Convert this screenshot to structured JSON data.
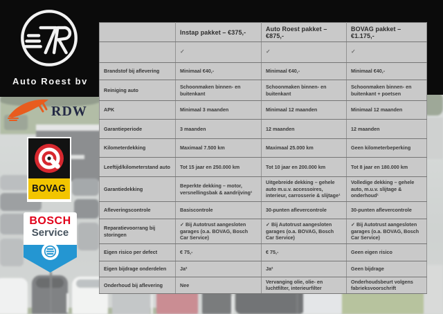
{
  "branding": {
    "company": "Auto Roest bv",
    "monogram": "7R"
  },
  "partners": {
    "rdw_label": "RDW",
    "bovag_label": "BOVAG",
    "bosch_label_top": "BOSCH",
    "bosch_label_bottom": "Service"
  },
  "colors": {
    "band_black": "#0B0B0B",
    "table_bg": "#C9C9C9",
    "rdw_orange": "#E85C1E",
    "rdw_navy": "#242A45",
    "bovag_red": "#D7282F",
    "bovag_yellow": "#F2C500",
    "bosch_red": "#E10019",
    "bosch_blue": "#2496D2",
    "bosch_slate": "#46535E"
  },
  "table": {
    "check_glyph": "✓",
    "packages": [
      "Instap pakket – €375,-",
      "Auto Roest pakket – €875,-",
      "BOVAG pakket – €1.175,-"
    ],
    "rows": [
      {
        "type": "check",
        "label": "",
        "cells": [
          "✓",
          "✓",
          "✓"
        ]
      },
      {
        "label": "Brandstof bij aflevering",
        "cells": [
          "Minimaal €40,-",
          "Minimaal €40,-",
          "Minimaal €40,-"
        ]
      },
      {
        "label": "Reiniging auto",
        "cells": [
          "Schoonmaken binnen- en buitenkant",
          "Schoonmaken binnen- en buitenkant",
          "Schoonmaken binnen- en buitenkant + poetsen"
        ]
      },
      {
        "label": "APK",
        "cells": [
          "Minimaal 3 maanden",
          "Minimaal 12 maanden",
          "Minimaal 12 maanden"
        ]
      },
      {
        "label": "Garantieperiode",
        "cells": [
          "3 maanden",
          "12 maanden",
          "12 maanden"
        ]
      },
      {
        "label": "Kilometerdekking",
        "cells": [
          "Maximaal 7.500 km",
          "Maximaal 25.000 km",
          "Geen kilometerbeperking"
        ]
      },
      {
        "label": "Leeftijd/kilometerstand auto",
        "cells": [
          "Tot 15 jaar en 250.000 km",
          "Tot 10 jaar en 200.000 km",
          "Tot 8 jaar en 180.000 km"
        ]
      },
      {
        "label": "Garantiedekking",
        "cells": [
          "Beperkte dekking – motor, versnellingsbak & aandrijving¹",
          "Uitgebreide dekking – gehele auto m.u.v. accessoires, interieur, carrosserie & slijtage¹",
          "Volledige dekking – gehele auto, m.u.v. slijtage & onderhoud¹"
        ]
      },
      {
        "label": "Afleveringscontrole",
        "cells": [
          "Basiscontrole",
          "30-punten aflevercontrole",
          "30-punten aflevercontrole"
        ]
      },
      {
        "label": "Reparatievoorrang bij storingen",
        "cells": [
          "✓ Bij Autotrust aangesloten garages (o.a. BOVAG, Bosch Car Service)",
          "✓ Bij Autotrust aangesloten garages (o.a. BOVAG, Bosch Car Service)",
          "✓ Bij Autotrust aangesloten garages (o.a. BOVAG, Bosch Car Service)"
        ]
      },
      {
        "label": "Eigen risico per defect",
        "cells": [
          "€ 75,-",
          "€ 75,-",
          "Geen eigen risico"
        ]
      },
      {
        "label": "Eigen bijdrage onderdelen",
        "cells": [
          "Ja²",
          "Ja²",
          "Geen bijdrage"
        ]
      },
      {
        "label": "Onderhoud bij aflevering",
        "cells": [
          "Nee",
          "Vervanging olie, olie- en luchtfilter, interieurfilter",
          "Onderhoudsbeurt volgens fabrieksvoorschrift"
        ]
      }
    ]
  }
}
